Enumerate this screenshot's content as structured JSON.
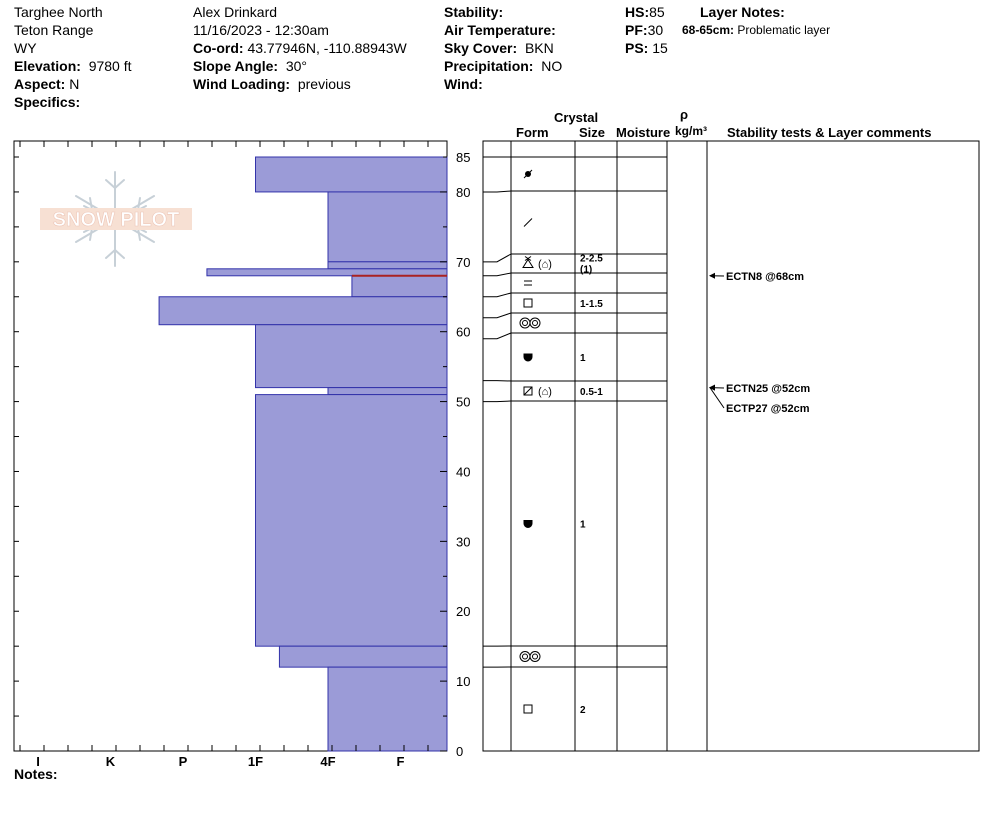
{
  "header": {
    "location": "Targhee North",
    "range": "Teton Range",
    "state": "WY",
    "elevation_label": "Elevation:",
    "elevation_value": "9780 ft",
    "aspect_label": "Aspect:",
    "aspect_value": "N",
    "specifics_label": "Specifics:",
    "observer": "Alex Drinkard",
    "datetime": "11/16/2023 - 12:30am",
    "coord_label": "Co-ord:",
    "coord_value": "43.77946N, -110.88943W",
    "slope_label": "Slope Angle:",
    "slope_value": "30°",
    "wind_loading_label": "Wind Loading:",
    "wind_loading_value": "previous",
    "stability_label": "Stability:",
    "air_temp_label": "Air Temperature:",
    "sky_label": "Sky Cover:",
    "sky_value": "BKN",
    "precip_label": "Precipitation:",
    "precip_value": "NO",
    "wind_label": "Wind:",
    "hs_label": "HS:",
    "hs_value": "85",
    "pf_label": "PF:",
    "pf_value": "30",
    "ps_label": "PS:",
    "ps_value": "15",
    "layer_notes_label": "Layer Notes:",
    "layer_note_range": "68-65cm:",
    "layer_note_text": "Problematic layer"
  },
  "logo_text": "SNOW PILOT",
  "notes_label": "Notes:",
  "table_headers": {
    "crystal": "Crystal",
    "form": "Form",
    "size": "Size",
    "moisture": "Moisture",
    "rho": "ρ",
    "density_unit": "kg/m³",
    "comments": "Stability tests & Layer comments"
  },
  "colors": {
    "hardness_fill": "#9b9bd7",
    "hardness_stroke": "#3333aa",
    "problem_line": "#aa2222"
  },
  "chart_data": {
    "type": "bar",
    "title": "",
    "xlabel": "",
    "ylabel": "",
    "ylim": [
      0,
      85
    ],
    "y_ticks": [
      0,
      10,
      20,
      30,
      40,
      50,
      60,
      70,
      80,
      85
    ],
    "hardness_scale": [
      "I",
      "K",
      "P",
      "1F",
      "4F",
      "F"
    ],
    "layers": [
      {
        "top": 85,
        "bottom": 80,
        "hardness": "1F"
      },
      {
        "top": 80,
        "bottom": 70,
        "hardness": "4F"
      },
      {
        "top": 70,
        "bottom": 69,
        "hardness": "4F"
      },
      {
        "top": 69,
        "bottom": 68,
        "hardness": "P+"
      },
      {
        "top": 68,
        "bottom": 65,
        "hardness": "4F+"
      },
      {
        "top": 65,
        "bottom": 61,
        "hardness": "P-"
      },
      {
        "top": 61,
        "bottom": 52,
        "hardness": "1F"
      },
      {
        "top": 52,
        "bottom": 51,
        "hardness": "4F"
      },
      {
        "top": 51,
        "bottom": 15,
        "hardness": "1F"
      },
      {
        "top": 15,
        "bottom": 12,
        "hardness": "1F+"
      },
      {
        "top": 12,
        "bottom": 0,
        "hardness": "4F"
      }
    ],
    "problem_layer_depth": 68,
    "crystal_layers": [
      {
        "top": 85,
        "bottom": 80,
        "form": "decomposing",
        "size": ""
      },
      {
        "top": 80,
        "bottom": 70,
        "form": "precipitation-particles",
        "size": ""
      },
      {
        "top": 70,
        "bottom": 68,
        "form": "surface-hoar-depth-hoar",
        "size": "2-2.5",
        "size2": "(1)"
      },
      {
        "top": 68,
        "bottom": 65,
        "form": "crust",
        "size": ""
      },
      {
        "top": 65,
        "bottom": 62,
        "form": "faceted",
        "size": "1-1.5"
      },
      {
        "top": 62,
        "bottom": 59,
        "form": "melt-forms",
        "size": ""
      },
      {
        "top": 59,
        "bottom": 53,
        "form": "rounding-faceted",
        "size": "1"
      },
      {
        "top": 53,
        "bottom": 50,
        "form": "faceted-rounding-depth-hoar",
        "size": "0.5-1"
      },
      {
        "top": 50,
        "bottom": 15,
        "form": "rounding-faceted",
        "size": "1"
      },
      {
        "top": 15,
        "bottom": 12,
        "form": "melt-forms",
        "size": ""
      },
      {
        "top": 12,
        "bottom": 0,
        "form": "faceted",
        "size": "2"
      }
    ],
    "stability_tests": [
      {
        "label": "ECTN8 @68cm",
        "depth": 68
      },
      {
        "label": "ECTN25 @52cm",
        "depth": 52
      },
      {
        "label": "ECTP27 @52cm",
        "depth": 52
      }
    ]
  }
}
